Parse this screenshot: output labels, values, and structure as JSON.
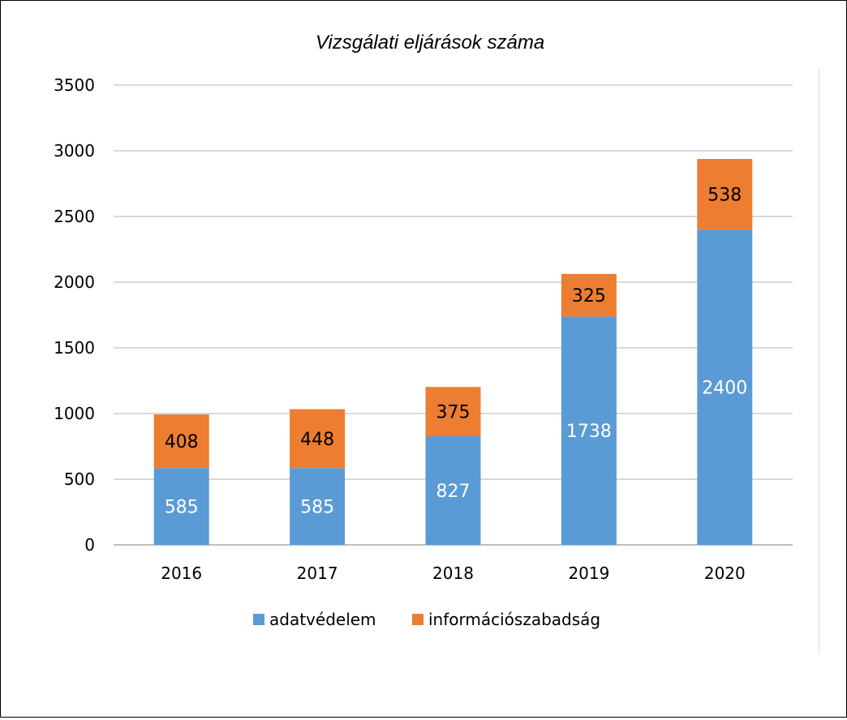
{
  "chart_data": {
    "type": "bar",
    "stacked": true,
    "title": "Vizsgálati eljárások száma",
    "categories": [
      "2016",
      "2017",
      "2018",
      "2019",
      "2020"
    ],
    "series": [
      {
        "name": "adatvédelem",
        "values": [
          585,
          585,
          827,
          1738,
          2400
        ],
        "color": "#5b9bd5",
        "label_color": "#ffffff"
      },
      {
        "name": "információszabadság",
        "values": [
          408,
          448,
          375,
          325,
          538
        ],
        "color": "#ed7d31",
        "label_color": "#000000"
      }
    ],
    "ylim": [
      0,
      3500
    ],
    "yticks": [
      "0",
      "500",
      "1000",
      "1500",
      "2000",
      "2500",
      "3000",
      "3500"
    ],
    "grid": true,
    "legend_position": "bottom"
  }
}
